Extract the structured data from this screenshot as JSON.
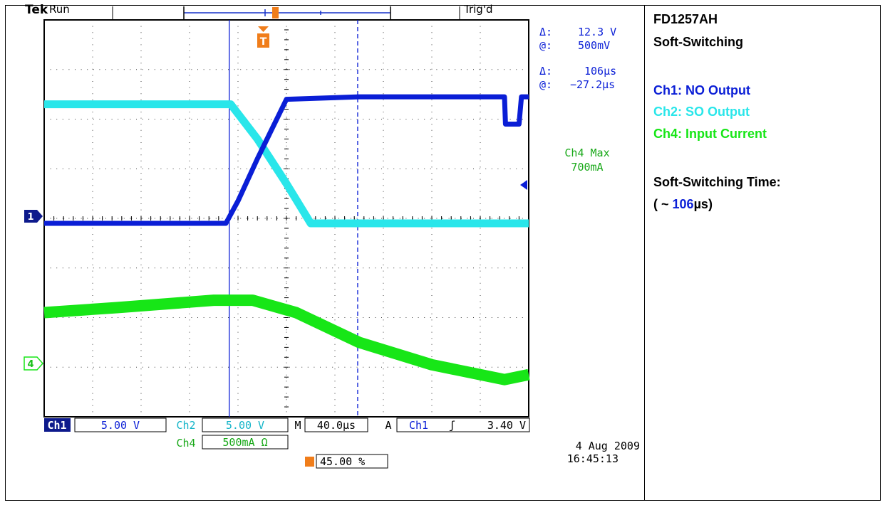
{
  "header": {
    "brand": "Tek",
    "state": "Run",
    "trigger_status": "Trig'd"
  },
  "cursors": {
    "amplitude_delta_symbol": "Δ:",
    "amplitude_delta": "12.3 V",
    "amplitude_at_symbol": "@:",
    "amplitude_at": "500mV",
    "time_delta_symbol": "Δ:",
    "time_delta": "106µs",
    "time_at_symbol": "@:",
    "time_at": "−27.2µs"
  },
  "measurement": {
    "line1": "Ch4 Max",
    "line2": "700mA"
  },
  "channel_markers": {
    "ch1": "1",
    "ch4": "4",
    "trigger": "T"
  },
  "settings": {
    "ch1_label": "Ch1",
    "ch1_scale": "5.00 V",
    "ch2_label": "Ch2",
    "ch2_scale": "5.00 V",
    "timebase_label": "M",
    "timebase": "40.0µs",
    "trigger_mode": "A",
    "trigger_source": "Ch1",
    "trigger_slope": "ʃ",
    "trigger_level": "3.40 V",
    "ch4_label": "Ch4",
    "ch4_scale": "500mA Ω",
    "trigger_position": "45.00 %"
  },
  "timestamp": {
    "date": "4 Aug 2009",
    "time": "16:45:13"
  },
  "side_panel": {
    "title_line1": "FD1257AH",
    "title_line2": "Soft-Switching",
    "legend_ch1": "Ch1: NO Output",
    "legend_ch2": "Ch2: SO Output",
    "legend_ch4": "Ch4: Input Current",
    "time_heading": "Soft-Switching Time:",
    "time_prefix": "( ~ ",
    "time_value": "106",
    "time_suffix": "µs)"
  },
  "colors": {
    "ch1": "#0a1ed6",
    "ch2": "#29e6ea",
    "ch4": "#17e617",
    "trigger": "#f07d1a",
    "grid": "#000000"
  },
  "chart_data": {
    "type": "line",
    "x_unit": "divisions",
    "y_unit": "divisions",
    "xlim": [
      0,
      10
    ],
    "ylim": [
      0,
      8
    ],
    "grid": true,
    "series": [
      {
        "name": "Ch1: NO Output",
        "color": "#0a1ed6",
        "points": [
          [
            0,
            3.9
          ],
          [
            3.75,
            3.9
          ],
          [
            4.0,
            4.35
          ],
          [
            4.4,
            5.2
          ],
          [
            5.0,
            6.4
          ],
          [
            6.5,
            6.45
          ],
          [
            9.5,
            6.45
          ],
          [
            9.52,
            5.9
          ],
          [
            9.8,
            5.9
          ],
          [
            9.85,
            6.45
          ],
          [
            10,
            6.45
          ]
        ]
      },
      {
        "name": "Ch2: SO Output",
        "color": "#29e6ea",
        "points": [
          [
            0,
            6.3
          ],
          [
            3.85,
            6.3
          ],
          [
            4.4,
            5.6
          ],
          [
            5.0,
            4.7
          ],
          [
            5.5,
            3.9
          ],
          [
            10,
            3.9
          ]
        ]
      },
      {
        "name": "Ch4: Input Current",
        "color": "#17e617",
        "points": [
          [
            0,
            2.1
          ],
          [
            1.5,
            2.2
          ],
          [
            3.5,
            2.35
          ],
          [
            4.3,
            2.35
          ],
          [
            5.2,
            2.1
          ],
          [
            6.5,
            1.5
          ],
          [
            8.0,
            1.05
          ],
          [
            9.5,
            0.75
          ],
          [
            10,
            0.85
          ]
        ]
      }
    ],
    "cursor_lines_x": [
      3.82,
      6.47
    ]
  }
}
